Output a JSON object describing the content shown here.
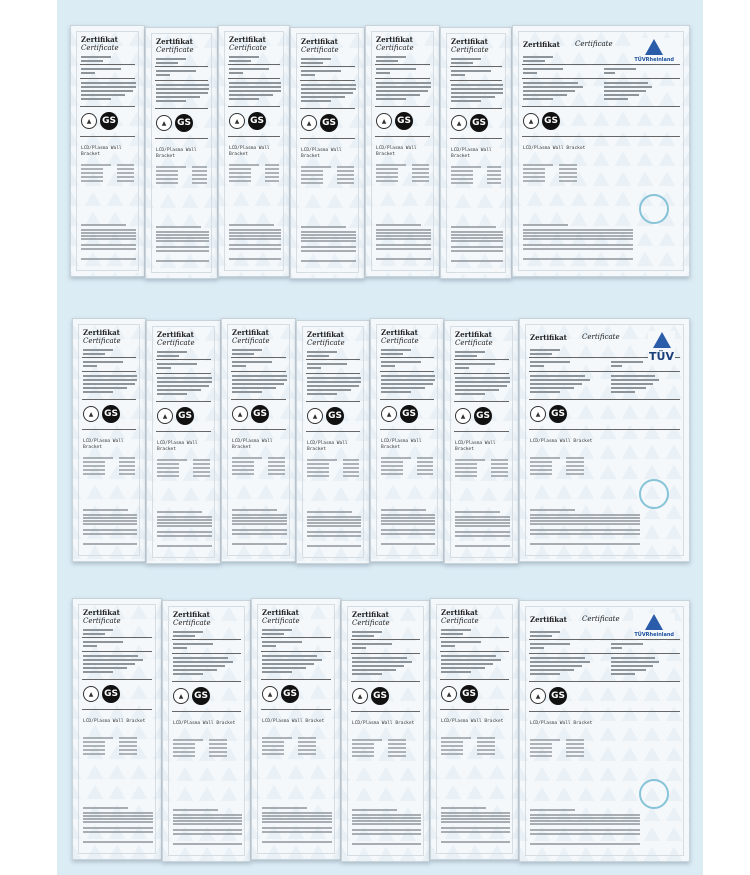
{
  "certificate": {
    "title_de": "Zertifikat",
    "title_en": "Certificate",
    "mark_gs": "GS",
    "product": "LCD/Plasma Wall Bracket"
  },
  "brands": {
    "rheinland": "TÜVRheinland",
    "tuv": "TÜV"
  },
  "rows": [
    {
      "count": 7,
      "brand": "rheinland"
    },
    {
      "count": 7,
      "brand": "tuv"
    },
    {
      "count": 6,
      "brand": "rheinland"
    }
  ],
  "colors": {
    "background": "#dcecf5",
    "paper": "#f4f8fb",
    "brand_blue": "#1b4f9c"
  }
}
